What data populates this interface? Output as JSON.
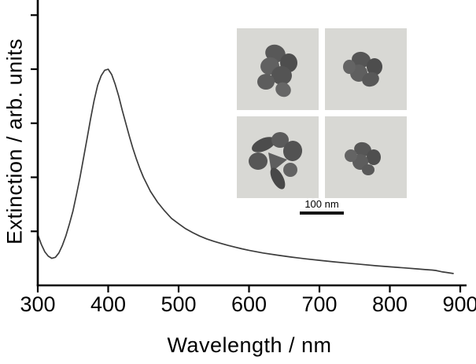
{
  "figure": {
    "background": "#ffffff",
    "axis_color": "#000000",
    "line_color": "#3c3c3c",
    "tem_background": "#d8d8d4"
  },
  "chart_data": {
    "type": "line",
    "title": "",
    "xlabel": "Wavelength / nm",
    "ylabel": "Extinction / arb. units",
    "xlim": [
      300,
      900
    ],
    "ylim": [
      0,
      1.32
    ],
    "x_ticks": [
      300,
      400,
      500,
      600,
      700,
      800,
      900
    ],
    "y_ticks": [
      0.25,
      0.5,
      0.75,
      1.0,
      1.25
    ],
    "y_tick_labels_visible": false,
    "grid": false,
    "legend": null,
    "peak_wavelength_nm": 397,
    "series": [
      {
        "name": "extinction-spectrum",
        "x": [
          300,
          305,
          310,
          315,
          320,
          325,
          330,
          335,
          340,
          345,
          350,
          355,
          360,
          365,
          370,
          375,
          380,
          385,
          390,
          395,
          400,
          405,
          410,
          415,
          420,
          425,
          430,
          435,
          440,
          445,
          450,
          460,
          470,
          480,
          490,
          500,
          510,
          520,
          530,
          540,
          550,
          560,
          570,
          580,
          590,
          600,
          620,
          640,
          660,
          680,
          700,
          720,
          740,
          760,
          780,
          800,
          820,
          840,
          850,
          860,
          865,
          870,
          875,
          880,
          890
        ],
        "y": [
          0.235,
          0.19,
          0.155,
          0.135,
          0.125,
          0.13,
          0.15,
          0.185,
          0.23,
          0.285,
          0.345,
          0.42,
          0.5,
          0.59,
          0.68,
          0.77,
          0.855,
          0.925,
          0.97,
          0.995,
          1.0,
          0.975,
          0.93,
          0.875,
          0.81,
          0.75,
          0.69,
          0.635,
          0.585,
          0.54,
          0.5,
          0.435,
          0.385,
          0.345,
          0.31,
          0.285,
          0.262,
          0.244,
          0.228,
          0.215,
          0.204,
          0.194,
          0.185,
          0.177,
          0.169,
          0.162,
          0.15,
          0.14,
          0.131,
          0.123,
          0.116,
          0.109,
          0.103,
          0.097,
          0.091,
          0.086,
          0.081,
          0.076,
          0.073,
          0.071,
          0.069,
          0.066,
          0.062,
          0.06,
          0.055
        ]
      }
    ]
  },
  "inset": {
    "name": "TEM micrographs of nanoparticle clusters",
    "panel_count": 4,
    "scale_bar_label": "100 nm"
  }
}
